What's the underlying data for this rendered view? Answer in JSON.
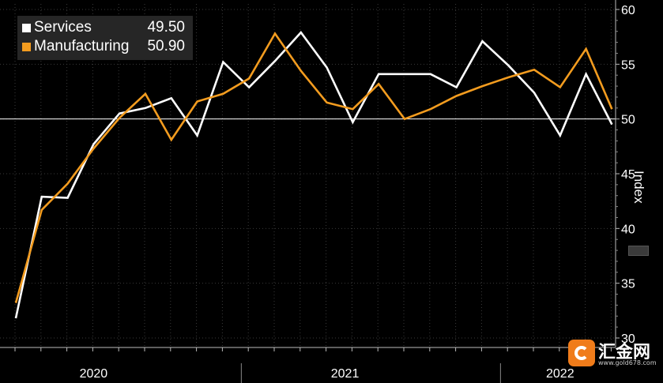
{
  "chart_data": {
    "type": "line",
    "x": [
      "2020-04",
      "2020-05",
      "2020-06",
      "2020-07",
      "2020-08",
      "2020-09",
      "2020-10",
      "2020-11",
      "2020-12",
      "2021-01",
      "2021-02",
      "2021-03",
      "2021-04",
      "2021-05",
      "2021-06",
      "2021-07",
      "2021-08",
      "2021-09",
      "2021-10",
      "2021-11",
      "2021-12",
      "2022-01",
      "2022-02",
      "2022-03"
    ],
    "series": [
      {
        "name": "Services",
        "color": "#ffffff",
        "last_value": "49.50",
        "values": [
          31.8,
          42.9,
          42.8,
          47.7,
          50.5,
          51.0,
          51.9,
          48.5,
          55.2,
          52.9,
          55.3,
          57.9,
          54.7,
          49.7,
          54.1,
          54.1,
          54.1,
          52.9,
          57.1,
          54.9,
          52.4,
          48.5,
          54.1,
          49.5
        ]
      },
      {
        "name": "Manufacturing",
        "color": "#f39c1f",
        "last_value": "50.90",
        "values": [
          33.2,
          41.7,
          44.1,
          47.3,
          50.1,
          52.3,
          48.1,
          51.6,
          52.3,
          53.7,
          57.8,
          54.4,
          51.5,
          50.9,
          53.2,
          50.0,
          50.9,
          52.1,
          53.0,
          53.8,
          54.5,
          52.9,
          56.4,
          50.9
        ]
      }
    ],
    "xlabel": "",
    "ylabel": "Index",
    "ylim": [
      30,
      60
    ],
    "yticks": [
      "30",
      "35",
      "40",
      "45",
      "50",
      "55",
      "60"
    ],
    "year_labels": [
      "2020",
      "2021",
      "2022"
    ],
    "reference_line": 50,
    "grid": true,
    "legend_position": "top-left"
  },
  "watermark": {
    "name": "汇金网",
    "url": "www.gold678.com"
  }
}
